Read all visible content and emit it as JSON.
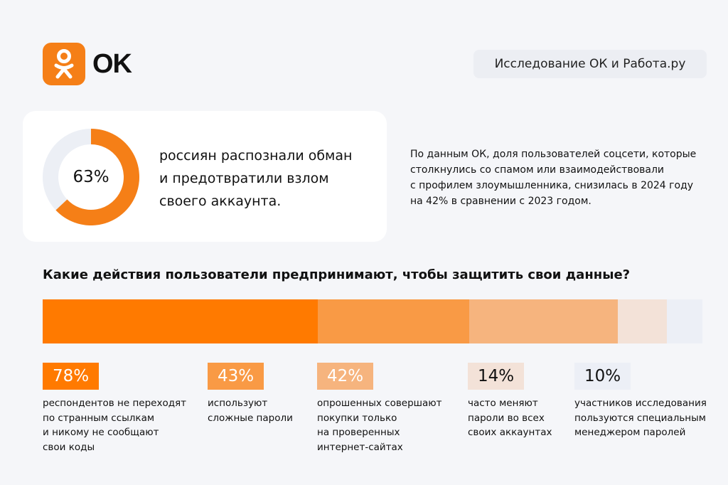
{
  "brand": {
    "name": "OK",
    "color": "#f57f17"
  },
  "header": {
    "badge": "Исследование ОК и Работа.ру"
  },
  "highlight": {
    "value": 63,
    "label": "63%",
    "text_lines": [
      "россиян распознали обман",
      "и предотвратили взлом",
      "своего аккаунта."
    ]
  },
  "side_note": [
    "По данным ОК, доля пользователей соцсети, которые",
    "столкнулись со спамом или взаимодействовали",
    "с профилем злоумышленника, снизилась в 2024 году",
    "на 42% в сравнении с 2023 годом."
  ],
  "question": "Какие действия пользователи предпринимают, чтобы защитить свои данные?",
  "chart_data": [
    {
      "type": "pie",
      "variant": "donut",
      "values": [
        63,
        37
      ],
      "colors": [
        "#f57f17",
        "#eceff5"
      ],
      "center_label": "63%"
    },
    {
      "type": "bar",
      "orientation": "horizontal-stacked",
      "values": [
        78,
        43,
        42,
        14,
        10
      ],
      "labels": [
        "78%",
        "43%",
        "42%",
        "14%",
        "10%"
      ],
      "colors": [
        "#ff7a00",
        "#f99a45",
        "#f6b47e",
        "#f3e2d8",
        "#eceff6"
      ],
      "label_text_colors": [
        "#ffffff",
        "#ffffff",
        "#ffffff",
        "#111111",
        "#111111"
      ],
      "descriptions": [
        [
          "респондентов не переходят",
          "по странным ссылкам",
          "и никому не сообщают",
          "свои коды"
        ],
        [
          "используют",
          "сложные пароли"
        ],
        [
          "опрошенных совершают",
          "покупки только",
          "на проверенных",
          "интернет-сайтах"
        ],
        [
          "часто меняют",
          "пароли во всех",
          "своих аккаунтах"
        ],
        [
          "участников исследования",
          "пользуются специальным",
          "менеджером паролей"
        ]
      ]
    }
  ]
}
